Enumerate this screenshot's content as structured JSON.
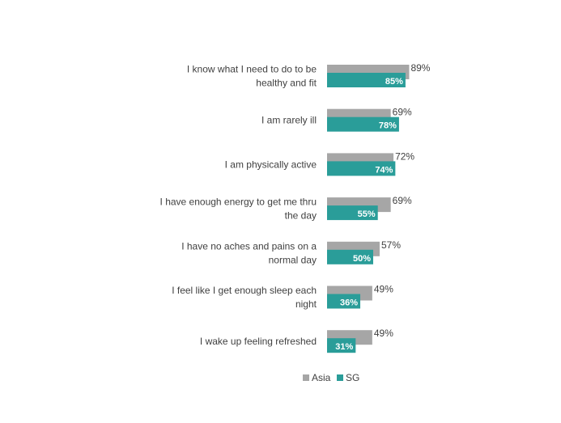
{
  "chart_data": {
    "type": "bar",
    "orientation": "horizontal",
    "categories": [
      [
        "I know what I need to do to be",
        "healthy and fit"
      ],
      [
        "I am rarely ill"
      ],
      [
        "I am physically active"
      ],
      [
        "I have enough energy to get me thru",
        "the day"
      ],
      [
        "I have no aches and pains on a",
        "normal day"
      ],
      [
        "I feel like I get enough sleep each",
        "night"
      ],
      [
        "I wake up feeling refreshed"
      ]
    ],
    "series": [
      {
        "name": "Asia",
        "color": "#a6a6a6",
        "values": [
          89,
          69,
          72,
          69,
          57,
          49,
          49
        ],
        "labels": [
          "89%",
          "69%",
          "72%",
          "69%",
          "57%",
          "49%",
          "49%"
        ]
      },
      {
        "name": "SG",
        "color": "#2a9d99",
        "values": [
          85,
          78,
          74,
          55,
          50,
          36,
          31
        ],
        "labels": [
          "85%",
          "78%",
          "74%",
          "55%",
          "50%",
          "36%",
          "31%"
        ]
      }
    ],
    "xlim": [
      0,
      100
    ],
    "grid": false,
    "legend_position": "bottom"
  }
}
